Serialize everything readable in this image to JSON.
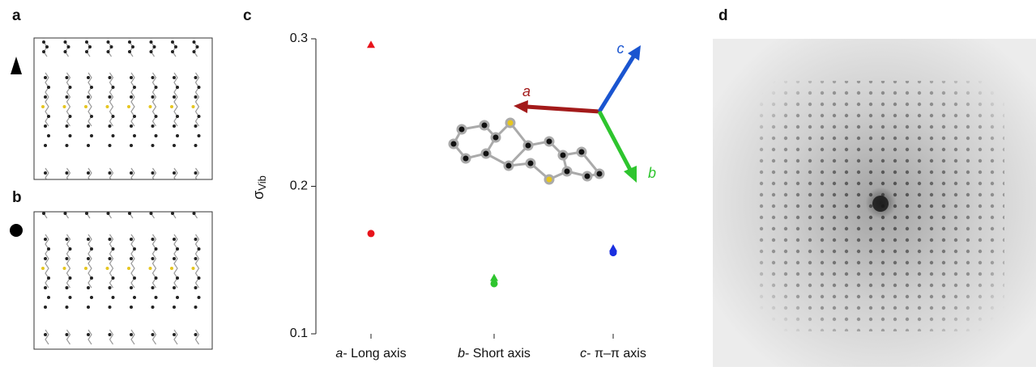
{
  "panel_labels": [
    "a",
    "b",
    "c",
    "d"
  ],
  "chart_data": {
    "type": "scatter",
    "ylabel": "σ",
    "ylabel_sub": "Vib",
    "category_prefixes": [
      "a",
      "b",
      "c"
    ],
    "categories": [
      "- Long axis",
      "- Short axis",
      "- π–π axis"
    ],
    "point_colors": [
      "#e8141b",
      "#2ec52e",
      "#1a2fe0"
    ],
    "series": [
      {
        "marker": "triangle",
        "values": [
          0.296,
          0.138,
          0.158
        ]
      },
      {
        "marker": "circle",
        "values": [
          0.168,
          0.134,
          0.155
        ]
      }
    ],
    "ylim": [
      0.1,
      0.3
    ],
    "yticks": [
      0.1,
      0.2,
      0.3
    ],
    "grid": false,
    "inset_axis_labels": [
      "a",
      "b",
      "c"
    ],
    "inset_axis_colors": [
      "#a31a1a",
      "#2ec52e",
      "#1a55d0"
    ]
  }
}
